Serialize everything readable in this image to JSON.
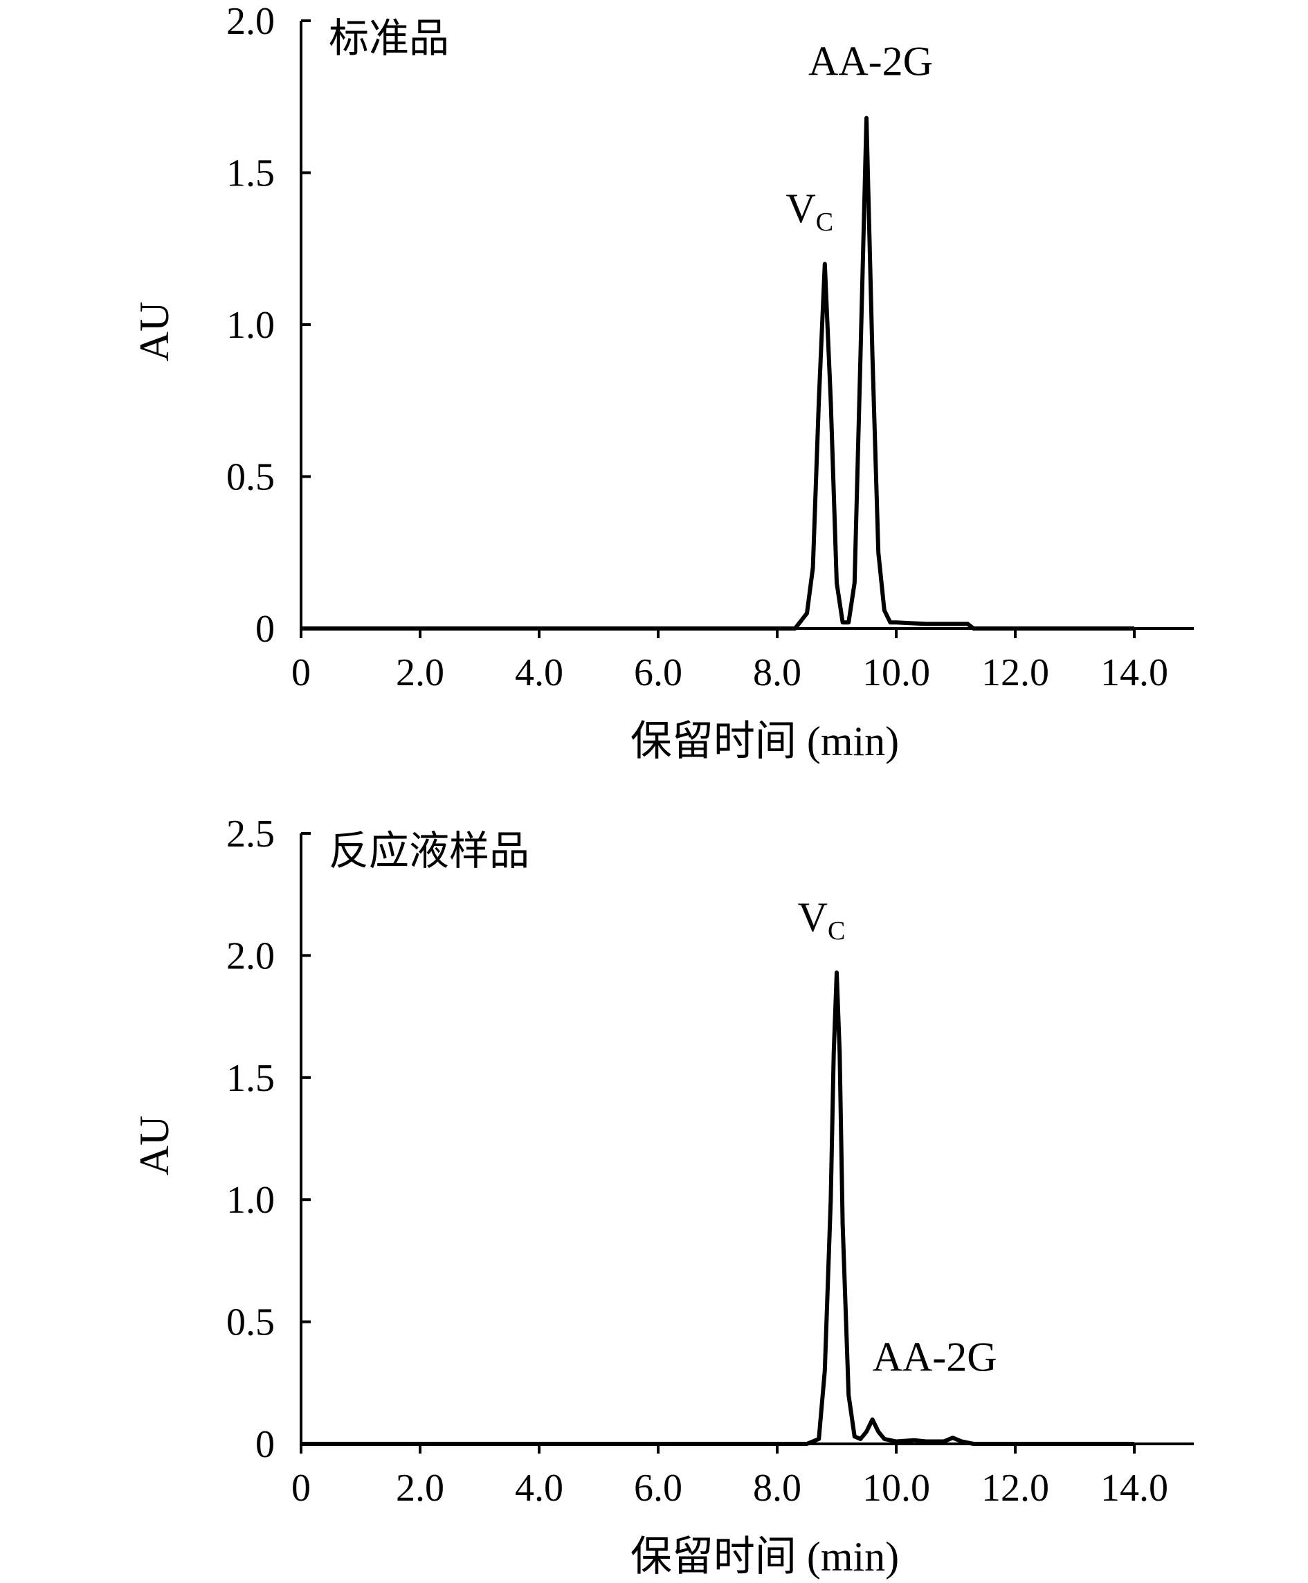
{
  "chart_data": [
    {
      "type": "line",
      "panel_label": "标准品",
      "xlabel": "保留时间 (min)",
      "ylabel": "AU",
      "xlim": [
        0,
        15
      ],
      "ylim": [
        0,
        2.0
      ],
      "x_ticks": [
        0,
        2,
        4,
        6,
        8,
        10,
        12,
        14
      ],
      "x_tick_labels": [
        "0",
        "2.0",
        "4.0",
        "6.0",
        "8.0",
        "10.0",
        "12.0",
        "14.0"
      ],
      "y_ticks": [
        0,
        0.5,
        1.0,
        1.5,
        2.0
      ],
      "y_tick_labels": [
        "0",
        "0.5",
        "1.0",
        "1.5",
        "2.0"
      ],
      "grid": false,
      "series": [
        {
          "x": [
            0,
            8.0,
            8.3,
            8.5,
            8.6,
            8.7,
            8.8,
            8.9,
            9.0,
            9.1,
            9.2,
            9.3,
            9.4,
            9.5,
            9.6,
            9.7,
            9.8,
            9.9,
            10.0,
            10.5,
            11.0,
            11.2,
            11.3,
            14.0
          ],
          "y": [
            0.0,
            0.0,
            0.0,
            0.05,
            0.2,
            0.75,
            1.2,
            0.75,
            0.15,
            0.02,
            0.02,
            0.15,
            0.9,
            1.68,
            0.9,
            0.25,
            0.06,
            0.02,
            0.02,
            0.015,
            0.015,
            0.015,
            0.0,
            0.0
          ]
        }
      ],
      "peak_labels": [
        {
          "text": "V",
          "sub": "C",
          "x": 8.8,
          "y": 1.2
        },
        {
          "text": "AA-2G",
          "x": 9.5,
          "y": 1.68
        }
      ]
    },
    {
      "type": "line",
      "panel_label": "反应液样品",
      "xlabel": "保留时间 (min)",
      "ylabel": "AU",
      "xlim": [
        0,
        15
      ],
      "ylim": [
        0,
        2.5
      ],
      "x_ticks": [
        0,
        2,
        4,
        6,
        8,
        10,
        12,
        14
      ],
      "x_tick_labels": [
        "0",
        "2.0",
        "4.0",
        "6.0",
        "8.0",
        "10.0",
        "12.0",
        "14.0"
      ],
      "y_ticks": [
        0,
        0.5,
        1.0,
        1.5,
        2.0,
        2.5
      ],
      "y_tick_labels": [
        "0",
        "0.5",
        "1.0",
        "1.5",
        "2.0",
        "2.5"
      ],
      "grid": false,
      "series": [
        {
          "x": [
            0,
            8.5,
            8.7,
            8.8,
            8.9,
            8.95,
            9.0,
            9.05,
            9.1,
            9.2,
            9.3,
            9.4,
            9.5,
            9.6,
            9.7,
            9.8,
            10.0,
            10.3,
            10.5,
            10.8,
            10.95,
            11.1,
            11.3,
            14.0
          ],
          "y": [
            0.0,
            0.0,
            0.02,
            0.3,
            1.0,
            1.6,
            1.93,
            1.6,
            0.9,
            0.2,
            0.03,
            0.02,
            0.05,
            0.1,
            0.05,
            0.02,
            0.01,
            0.015,
            0.01,
            0.01,
            0.025,
            0.01,
            0.0,
            0.0
          ]
        }
      ],
      "peak_labels": [
        {
          "text": "V",
          "sub": "C",
          "x": 9.0,
          "y": 1.93
        },
        {
          "text": "AA-2G",
          "x": 9.6,
          "y": 0.1
        }
      ]
    }
  ]
}
